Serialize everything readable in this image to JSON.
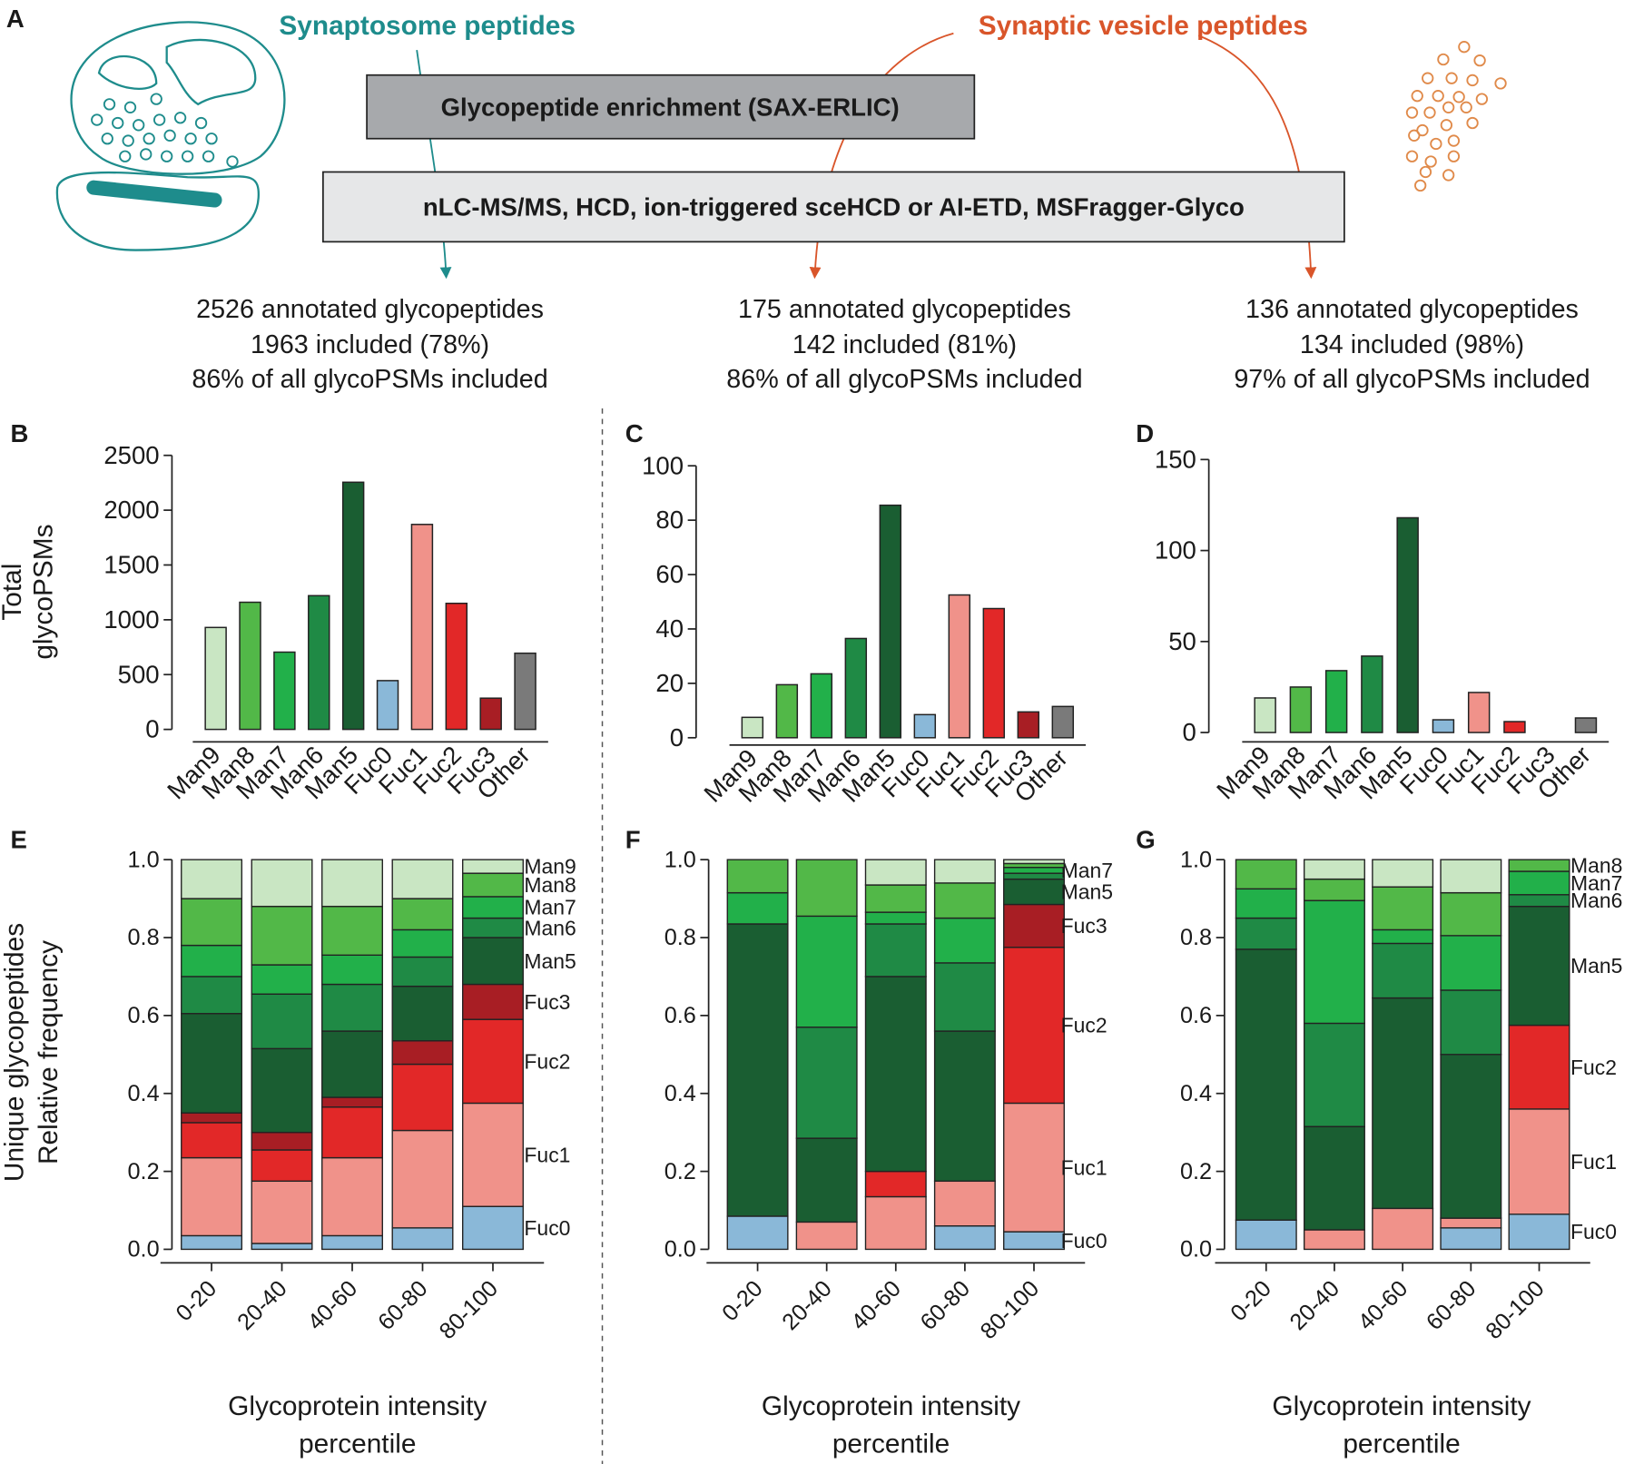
{
  "panel_a": {
    "label": "A",
    "sources": [
      "Synaptosome peptides",
      "Synaptic vesicle peptides"
    ],
    "steps": [
      "Glycopeptide enrichment (SAX-ERLIC)",
      "nLC-MS/MS, HCD, ion-triggered sceHCD or AI-ETD, MSFragger-Glyco"
    ],
    "results": [
      [
        "2526 annotated glycopeptides",
        "1963 included (78%)",
        "86% of all glycoPSMs included"
      ],
      [
        "175 annotated glycopeptides",
        "142 included (81%)",
        "86% of all glycoPSMs included"
      ],
      [
        "136 annotated glycopeptides",
        "134 included (98%)",
        "97% of all glycoPSMs included"
      ]
    ]
  },
  "chart_data": [
    {
      "panel": "B",
      "type": "bar",
      "ylabel": [
        "Total",
        "glycoPSMs"
      ],
      "categories": [
        "Man9",
        "Man8",
        "Man7",
        "Man6",
        "Man5",
        "Fuc0",
        "Fuc1",
        "Fuc2",
        "Fuc3",
        "Other"
      ],
      "values": [
        930,
        1160,
        705,
        1220,
        2255,
        445,
        1870,
        1150,
        285,
        695
      ],
      "colors": [
        "#c9e6c3",
        "#52b848",
        "#22b04a",
        "#1f8a45",
        "#1a5e32",
        "#8ab8d8",
        "#f0928a",
        "#e22828",
        "#a81e24",
        "#7a7a7a"
      ],
      "ylim": [
        0,
        2500
      ],
      "yticks": [
        0,
        500,
        1000,
        1500,
        2000,
        2500
      ]
    },
    {
      "panel": "C",
      "type": "bar",
      "categories": [
        "Man9",
        "Man8",
        "Man7",
        "Man6",
        "Man5",
        "Fuc0",
        "Fuc1",
        "Fuc2",
        "Fuc3",
        "Other"
      ],
      "values": [
        7.5,
        19.5,
        23.5,
        36.5,
        85.5,
        8.5,
        52.5,
        47.5,
        9.5,
        11.5
      ],
      "colors": [
        "#c9e6c3",
        "#52b848",
        "#22b04a",
        "#1f8a45",
        "#1a5e32",
        "#8ab8d8",
        "#f0928a",
        "#e22828",
        "#a81e24",
        "#7a7a7a"
      ],
      "ylim": [
        0,
        100
      ],
      "yticks": [
        0,
        20,
        40,
        60,
        80,
        100
      ]
    },
    {
      "panel": "D",
      "type": "bar",
      "categories": [
        "Man9",
        "Man8",
        "Man7",
        "Man6",
        "Man5",
        "Fuc0",
        "Fuc1",
        "Fuc2",
        "Fuc3",
        "Other"
      ],
      "values": [
        19,
        25,
        34,
        42,
        118,
        7,
        22,
        6,
        0,
        8
      ],
      "colors": [
        "#c9e6c3",
        "#52b848",
        "#22b04a",
        "#1f8a45",
        "#1a5e32",
        "#8ab8d8",
        "#f0928a",
        "#e22828",
        "#a81e24",
        "#7a7a7a"
      ],
      "ylim": [
        0,
        150
      ],
      "yticks": [
        0,
        50,
        100,
        150
      ]
    },
    {
      "panel": "E",
      "type": "stacked_bar",
      "ylabel": [
        "Unique glycopeptides",
        "Relative frequency"
      ],
      "xlabel": [
        "Glycoprotein intensity",
        "percentile"
      ],
      "categories": [
        "0-20",
        "20-40",
        "40-60",
        "60-80",
        "80-100"
      ],
      "ylim": [
        0,
        1
      ],
      "yticks": [
        {
          "value": 0,
          "label": "0.0"
        },
        0.2,
        0.4,
        0.6,
        0.8,
        {
          "value": 1,
          "label": "1.0"
        }
      ],
      "series": [
        {
          "name": "Fuc0",
          "color": "#8ab8d8",
          "values": [
            0.035,
            0.015,
            0.035,
            0.055,
            0.11
          ]
        },
        {
          "name": "Fuc1",
          "color": "#f0928a",
          "values": [
            0.2,
            0.16,
            0.2,
            0.25,
            0.265
          ]
        },
        {
          "name": "Fuc2",
          "color": "#e22828",
          "values": [
            0.09,
            0.08,
            0.13,
            0.17,
            0.215
          ]
        },
        {
          "name": "Fuc3",
          "color": "#a81e24",
          "values": [
            0.025,
            0.045,
            0.025,
            0.06,
            0.09
          ]
        },
        {
          "name": "Man5",
          "color": "#1a5e32",
          "values": [
            0.255,
            0.215,
            0.17,
            0.14,
            0.12
          ]
        },
        {
          "name": "Man6",
          "color": "#1f8a45",
          "values": [
            0.095,
            0.14,
            0.12,
            0.075,
            0.05
          ]
        },
        {
          "name": "Man7",
          "color": "#22b04a",
          "values": [
            0.08,
            0.075,
            0.075,
            0.07,
            0.055
          ]
        },
        {
          "name": "Man8",
          "color": "#52b848",
          "values": [
            0.12,
            0.15,
            0.125,
            0.08,
            0.06
          ]
        },
        {
          "name": "Man9",
          "color": "#c9e6c3",
          "values": [
            0.1,
            0.12,
            0.12,
            0.1,
            0.035
          ]
        }
      ]
    },
    {
      "panel": "F",
      "type": "stacked_bar",
      "xlabel": [
        "Glycoprotein intensity",
        "percentile"
      ],
      "categories": [
        "0-20",
        "20-40",
        "40-60",
        "60-80",
        "80-100"
      ],
      "ylim": [
        0,
        1
      ],
      "yticks": [
        {
          "value": 0,
          "label": "0.0"
        },
        0.2,
        0.4,
        0.6,
        0.8,
        {
          "value": 1,
          "label": "1.0"
        }
      ],
      "series": [
        {
          "name": "Fuc0",
          "color": "#8ab8d8",
          "values": [
            0.085,
            0,
            0,
            0.06,
            0.045
          ]
        },
        {
          "name": "Fuc1",
          "color": "#f0928a",
          "values": [
            0,
            0.07,
            0.135,
            0.115,
            0.33
          ]
        },
        {
          "name": "Fuc2",
          "color": "#e22828",
          "values": [
            0,
            0,
            0.065,
            0,
            0.4
          ]
        },
        {
          "name": "Fuc3",
          "color": "#a81e24",
          "values": [
            0,
            0,
            0,
            0,
            0.11
          ]
        },
        {
          "name": "Man5",
          "color": "#1a5e32",
          "values": [
            0.75,
            0.215,
            0.5,
            0.385,
            0.065
          ]
        },
        {
          "color": "#1f8a45",
          "values": [
            0,
            0.285,
            0.135,
            0.175,
            0.015
          ]
        },
        {
          "name": "Man7",
          "color": "#22b04a",
          "values": [
            0.08,
            0.285,
            0.03,
            0.115,
            0.015
          ]
        },
        {
          "color": "#52b848",
          "values": [
            0.085,
            0.145,
            0.07,
            0.09,
            0.01
          ]
        },
        {
          "color": "#c9e6c3",
          "values": [
            0,
            0,
            0.065,
            0.06,
            0.01
          ]
        }
      ]
    },
    {
      "panel": "G",
      "type": "stacked_bar",
      "xlabel": [
        "Glycoprotein intensity",
        "percentile"
      ],
      "categories": [
        "0-20",
        "20-40",
        "40-60",
        "60-80",
        "80-100"
      ],
      "ylim": [
        0,
        1
      ],
      "yticks": [
        {
          "value": 0,
          "label": "0.0"
        },
        0.2,
        0.4,
        0.6,
        0.8,
        {
          "value": 1,
          "label": "1.0"
        }
      ],
      "series": [
        {
          "name": "Fuc0",
          "color": "#8ab8d8",
          "values": [
            0.075,
            0,
            0,
            0.055,
            0.09
          ]
        },
        {
          "name": "Fuc1",
          "color": "#f0928a",
          "values": [
            0,
            0.05,
            0.105,
            0.025,
            0.27
          ]
        },
        {
          "name": "Fuc2",
          "color": "#e22828",
          "values": [
            0,
            0,
            0,
            0,
            0.215
          ]
        },
        {
          "name": "Man5",
          "color": "#1a5e32",
          "values": [
            0.695,
            0.265,
            0.54,
            0.42,
            0.305
          ]
        },
        {
          "name": "Man6",
          "color": "#1f8a45",
          "values": [
            0.08,
            0.265,
            0.14,
            0.165,
            0.03
          ]
        },
        {
          "name": "Man7",
          "color": "#22b04a",
          "values": [
            0.075,
            0.315,
            0.035,
            0.14,
            0.06
          ]
        },
        {
          "name": "Man8",
          "color": "#52b848",
          "values": [
            0.075,
            0.055,
            0.11,
            0.11,
            0.03
          ]
        },
        {
          "color": "#c9e6c3",
          "values": [
            0,
            0.05,
            0.07,
            0.085,
            0
          ]
        }
      ]
    }
  ]
}
